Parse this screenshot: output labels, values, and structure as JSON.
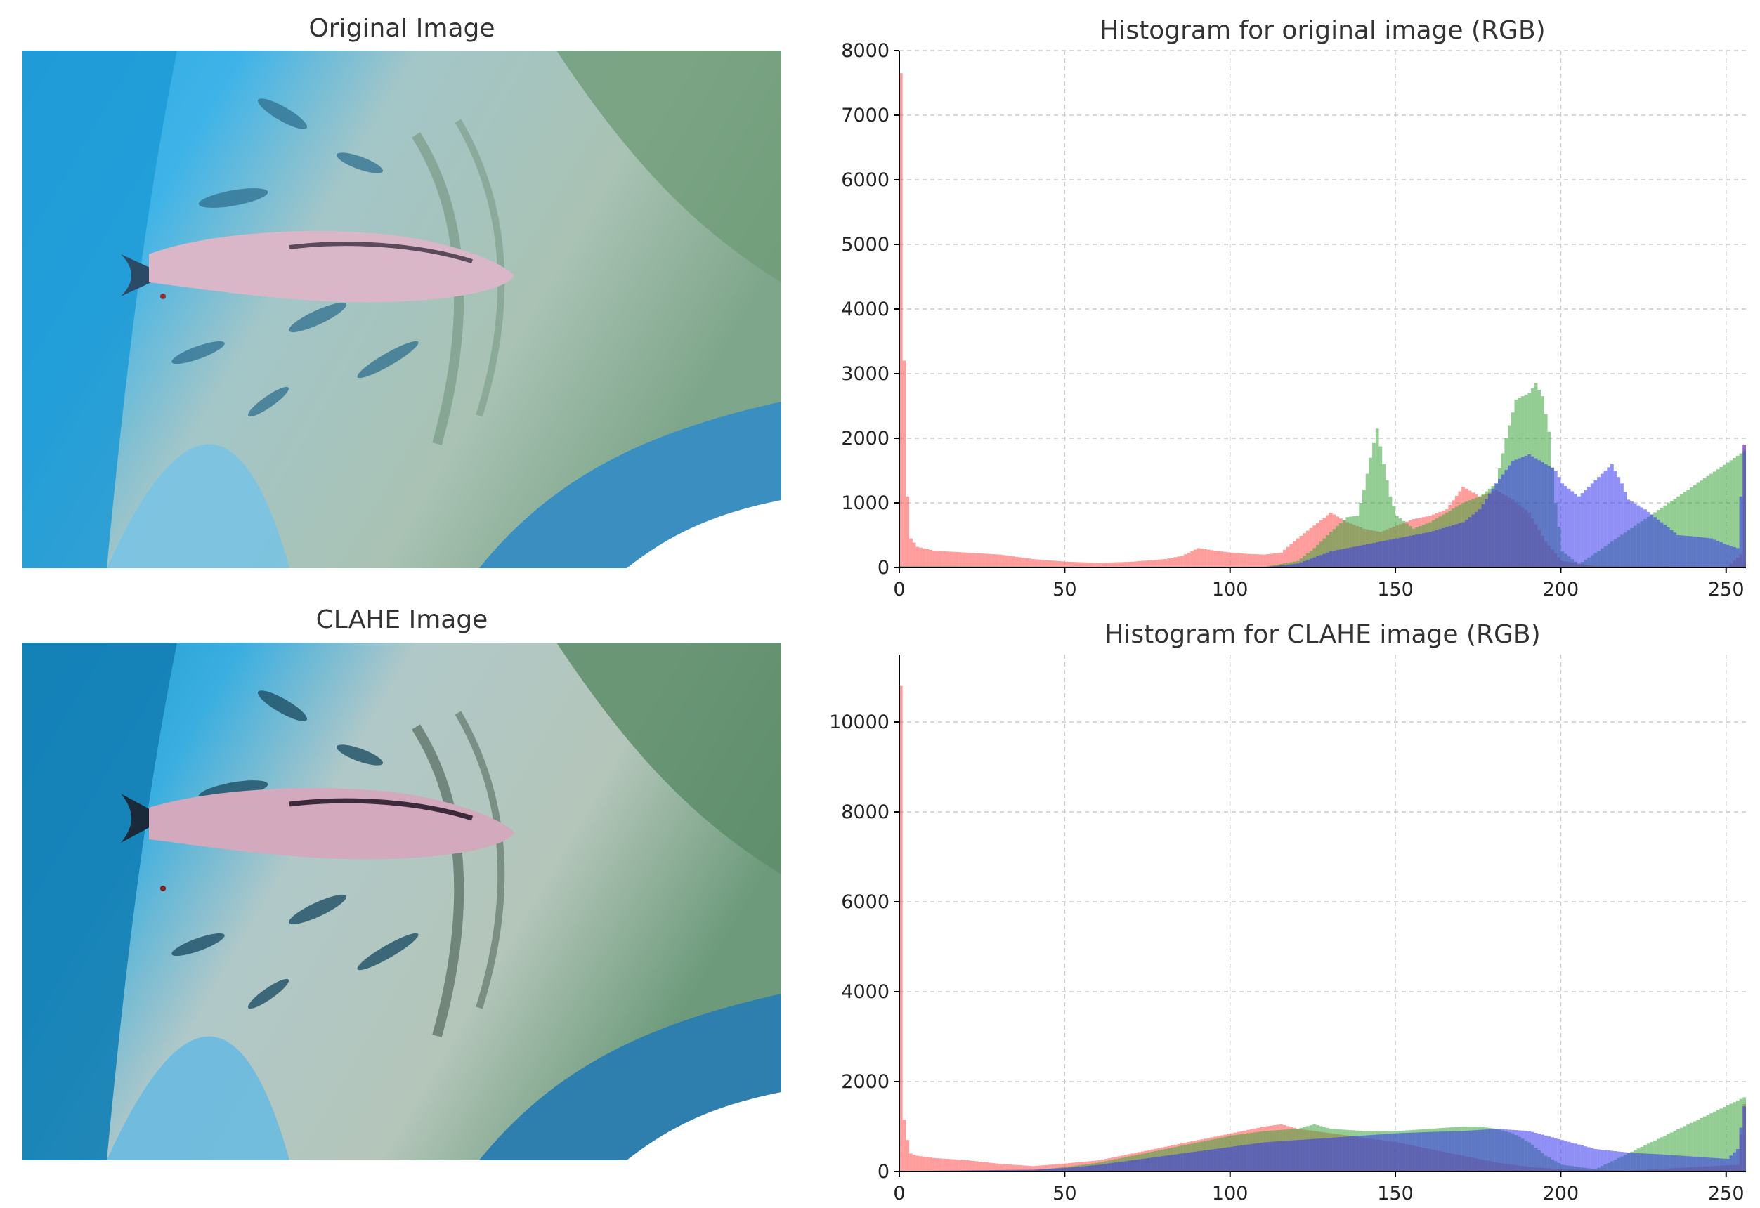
{
  "panels": {
    "original_image_title": "Original Image",
    "clahe_image_title": "CLAHE Image"
  },
  "colors": {
    "red": "#ff4d4d",
    "green": "#3aa43a",
    "blue": "#3333ee",
    "grid": "#cccccc"
  },
  "chart_data": [
    {
      "type": "bar",
      "title": "Histogram for original image (RGB)",
      "xlabel": "",
      "ylabel": "",
      "xlim": [
        0,
        256
      ],
      "ylim": [
        0,
        8000
      ],
      "xticks": [
        0,
        50,
        100,
        150,
        200,
        250
      ],
      "yticks": [
        0,
        1000,
        2000,
        3000,
        4000,
        5000,
        6000,
        7000,
        8000
      ],
      "grid": true,
      "series": [
        {
          "color": "red",
          "points": [
            [
              0,
              7650
            ],
            [
              1,
              3200
            ],
            [
              2,
              1100
            ],
            [
              3,
              450
            ],
            [
              5,
              320
            ],
            [
              10,
              260
            ],
            [
              20,
              230
            ],
            [
              30,
              200
            ],
            [
              40,
              130
            ],
            [
              50,
              90
            ],
            [
              60,
              70
            ],
            [
              70,
              90
            ],
            [
              80,
              130
            ],
            [
              85,
              180
            ],
            [
              90,
              300
            ],
            [
              95,
              260
            ],
            [
              100,
              230
            ],
            [
              105,
              210
            ],
            [
              110,
              200
            ],
            [
              115,
              230
            ],
            [
              120,
              450
            ],
            [
              125,
              650
            ],
            [
              130,
              850
            ],
            [
              135,
              700
            ],
            [
              140,
              600
            ],
            [
              145,
              550
            ],
            [
              150,
              650
            ],
            [
              155,
              750
            ],
            [
              160,
              800
            ],
            [
              165,
              900
            ],
            [
              170,
              1250
            ],
            [
              175,
              1100
            ],
            [
              180,
              1200
            ],
            [
              185,
              1050
            ],
            [
              190,
              850
            ],
            [
              195,
              400
            ],
            [
              200,
              100
            ],
            [
              210,
              20
            ],
            [
              250,
              10
            ],
            [
              254,
              200
            ],
            [
              255,
              1900
            ]
          ]
        },
        {
          "color": "green",
          "points": [
            [
              0,
              20
            ],
            [
              100,
              5
            ],
            [
              110,
              10
            ],
            [
              120,
              100
            ],
            [
              125,
              300
            ],
            [
              130,
              550
            ],
            [
              135,
              780
            ],
            [
              138,
              800
            ],
            [
              140,
              1200
            ],
            [
              142,
              1700
            ],
            [
              144,
              2150
            ],
            [
              146,
              1600
            ],
            [
              148,
              1100
            ],
            [
              150,
              800
            ],
            [
              155,
              600
            ],
            [
              160,
              700
            ],
            [
              165,
              850
            ],
            [
              170,
              1000
            ],
            [
              175,
              1100
            ],
            [
              180,
              1300
            ],
            [
              183,
              2000
            ],
            [
              186,
              2600
            ],
            [
              190,
              2700
            ],
            [
              192,
              2850
            ],
            [
              194,
              2650
            ],
            [
              196,
              2100
            ],
            [
              198,
              1000
            ],
            [
              200,
              250
            ],
            [
              205,
              50
            ],
            [
              255,
              1800
            ]
          ]
        },
        {
          "color": "blue",
          "points": [
            [
              0,
              10
            ],
            [
              110,
              5
            ],
            [
              120,
              60
            ],
            [
              130,
              250
            ],
            [
              140,
              350
            ],
            [
              150,
              450
            ],
            [
              160,
              550
            ],
            [
              170,
              700
            ],
            [
              175,
              900
            ],
            [
              180,
              1300
            ],
            [
              185,
              1650
            ],
            [
              190,
              1750
            ],
            [
              195,
              1600
            ],
            [
              198,
              1500
            ],
            [
              200,
              1300
            ],
            [
              205,
              1100
            ],
            [
              210,
              1350
            ],
            [
              213,
              1500
            ],
            [
              215,
              1600
            ],
            [
              218,
              1300
            ],
            [
              220,
              1050
            ],
            [
              225,
              900
            ],
            [
              230,
              700
            ],
            [
              235,
              500
            ],
            [
              240,
              480
            ],
            [
              245,
              450
            ],
            [
              250,
              350
            ],
            [
              253,
              300
            ],
            [
              255,
              1900
            ]
          ]
        }
      ]
    },
    {
      "type": "bar",
      "title": "Histogram for CLAHE image (RGB)",
      "xlabel": "",
      "ylabel": "",
      "xlim": [
        0,
        256
      ],
      "ylim": [
        0,
        11500
      ],
      "xticks": [
        0,
        50,
        100,
        150,
        200,
        250
      ],
      "yticks": [
        0,
        2000,
        4000,
        6000,
        8000,
        10000
      ],
      "grid": true,
      "series": [
        {
          "color": "red",
          "points": [
            [
              0,
              10800
            ],
            [
              1,
              1150
            ],
            [
              2,
              700
            ],
            [
              3,
              400
            ],
            [
              5,
              350
            ],
            [
              10,
              300
            ],
            [
              20,
              250
            ],
            [
              30,
              170
            ],
            [
              40,
              120
            ],
            [
              50,
              180
            ],
            [
              60,
              250
            ],
            [
              70,
              400
            ],
            [
              80,
              550
            ],
            [
              90,
              700
            ],
            [
              100,
              850
            ],
            [
              110,
              1000
            ],
            [
              115,
              1050
            ],
            [
              120,
              950
            ],
            [
              125,
              900
            ],
            [
              130,
              850
            ],
            [
              140,
              750
            ],
            [
              150,
              650
            ],
            [
              160,
              500
            ],
            [
              170,
              350
            ],
            [
              180,
              200
            ],
            [
              190,
              100
            ],
            [
              200,
              50
            ],
            [
              220,
              20
            ],
            [
              253,
              150
            ],
            [
              255,
              1500
            ]
          ]
        },
        {
          "color": "green",
          "points": [
            [
              0,
              10
            ],
            [
              40,
              30
            ],
            [
              50,
              100
            ],
            [
              60,
              200
            ],
            [
              70,
              350
            ],
            [
              80,
              500
            ],
            [
              90,
              650
            ],
            [
              100,
              800
            ],
            [
              110,
              900
            ],
            [
              120,
              950
            ],
            [
              125,
              1050
            ],
            [
              130,
              950
            ],
            [
              140,
              900
            ],
            [
              150,
              900
            ],
            [
              160,
              950
            ],
            [
              170,
              1000
            ],
            [
              175,
              1000
            ],
            [
              180,
              950
            ],
            [
              185,
              850
            ],
            [
              190,
              650
            ],
            [
              195,
              350
            ],
            [
              200,
              150
            ],
            [
              210,
              50
            ],
            [
              255,
              1650
            ]
          ]
        },
        {
          "color": "blue",
          "points": [
            [
              0,
              10
            ],
            [
              40,
              40
            ],
            [
              50,
              80
            ],
            [
              60,
              150
            ],
            [
              70,
              250
            ],
            [
              80,
              350
            ],
            [
              90,
              450
            ],
            [
              100,
              550
            ],
            [
              110,
              650
            ],
            [
              120,
              700
            ],
            [
              130,
              750
            ],
            [
              140,
              800
            ],
            [
              150,
              850
            ],
            [
              160,
              880
            ],
            [
              170,
              900
            ],
            [
              180,
              950
            ],
            [
              190,
              900
            ],
            [
              200,
              700
            ],
            [
              210,
              500
            ],
            [
              220,
              420
            ],
            [
              230,
              380
            ],
            [
              240,
              330
            ],
            [
              250,
              280
            ],
            [
              253,
              500
            ],
            [
              255,
              1450
            ]
          ]
        }
      ]
    }
  ]
}
